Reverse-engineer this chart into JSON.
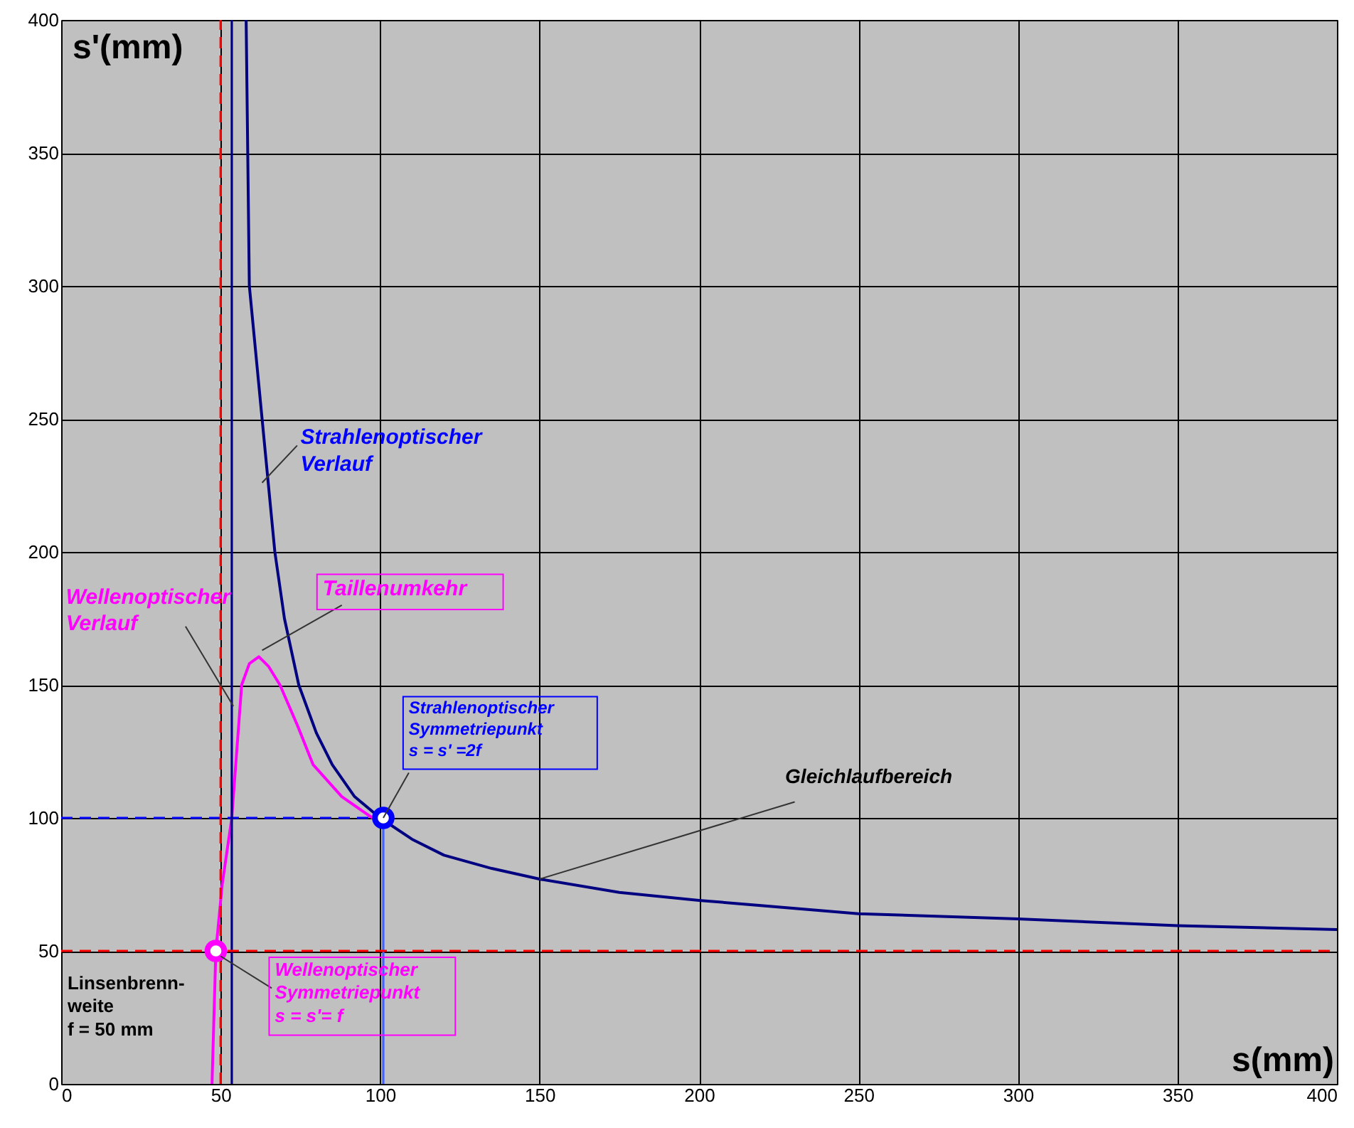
{
  "chart_data": {
    "type": "line",
    "xlabel": "s(mm)",
    "ylabel": "s'(mm)",
    "xlim": [
      0,
      400
    ],
    "ylim": [
      0,
      400
    ],
    "xticks": [
      0,
      50,
      100,
      150,
      200,
      250,
      300,
      350,
      400
    ],
    "yticks": [
      0,
      50,
      100,
      150,
      200,
      250,
      300,
      350,
      400
    ],
    "grid": true,
    "series": [
      {
        "type": "line",
        "color": "#000080",
        "x": [
          58,
          58.5,
          59,
          61,
          63,
          65,
          67,
          70,
          74.5,
          80,
          85,
          92,
          100,
          110,
          120,
          135,
          150,
          175,
          200,
          250,
          300,
          350,
          400
        ],
        "values": [
          400,
          350,
          300,
          275,
          250,
          225,
          200,
          175,
          150,
          132,
          120,
          108,
          100,
          92,
          86,
          81,
          77,
          72,
          69,
          64,
          62,
          59.5,
          58
        ]
      },
      {
        "type": "line",
        "color": "#ff00ff",
        "x": [
          47.3,
          48.5,
          50.5,
          53.5,
          56.6,
          59,
          62,
          65,
          68.6,
          74,
          79,
          88,
          97.6
        ],
        "values": [
          0,
          50,
          75,
          100,
          150,
          158,
          160.6,
          157,
          150,
          135,
          120,
          108,
          100
        ]
      },
      {
        "type": "line",
        "color": "#0000ff",
        "line_style": "dashed",
        "x": [
          0,
          101
        ],
        "values": [
          100,
          100
        ]
      },
      {
        "type": "line",
        "color": "#4060ff",
        "x": [
          101,
          101
        ],
        "values": [
          0,
          100
        ]
      },
      {
        "type": "line",
        "color": "#000080",
        "x": [
          53.5,
          53.5
        ],
        "values": [
          0,
          400
        ]
      },
      {
        "type": "line",
        "color": "#ff0000",
        "line_style": "dashed",
        "x": [
          50,
          50
        ],
        "values": [
          0,
          400
        ]
      },
      {
        "type": "line",
        "color": "#ff0000",
        "line_style": "dashed",
        "x": [
          0,
          400
        ],
        "values": [
          50,
          50
        ]
      },
      {
        "type": "scatter",
        "color": "#0000ff",
        "marker": "circle",
        "x": [
          101
        ],
        "values": [
          100
        ]
      },
      {
        "type": "scatter",
        "color": "#ff00ff",
        "marker": "circle",
        "x": [
          48.5
        ],
        "values": [
          50
        ]
      }
    ],
    "annotations": [
      "Linsenbrenn-\nweite\n f = 50 mm",
      {
        "text": "Strahlenoptischer\nVerlauf",
        "x": 63,
        "y": 226
      },
      {
        "text": "Wellenoptischer\nVerlauf",
        "x": 54,
        "y": 142
      },
      {
        "text": "Taillenumkehr",
        "x": 63,
        "y": 163
      },
      {
        "text": "Strahlenoptischer\nSymmetriepunkt\ns = s' =2f",
        "x": 101,
        "y": 100
      },
      {
        "text": "Gleichlaufbereich",
        "x": 150,
        "y": 77
      },
      {
        "text": "Wellenoptischer\nSymmetriepunkt\ns = s'= f",
        "x": 50,
        "y": 48
      }
    ]
  }
}
